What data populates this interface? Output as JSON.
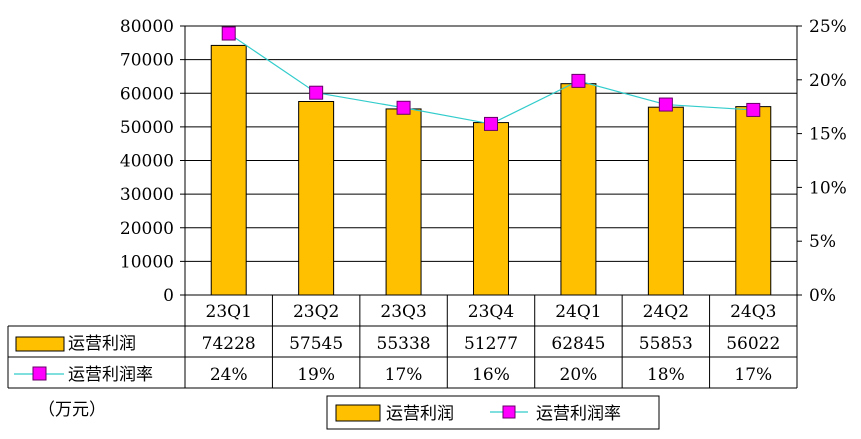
{
  "unit_note": "（万元）",
  "legend": {
    "bar_label": "运营利润",
    "line_label": "运营利润率"
  },
  "colors": {
    "bar_fill": "#FFC000",
    "bar_stroke": "#000000",
    "line": "#33CCCC",
    "marker_fill": "#FF00FF",
    "marker_stroke": "#660066"
  },
  "chart_data": {
    "type": "bar",
    "categories": [
      "23Q1",
      "23Q2",
      "23Q3",
      "23Q4",
      "24Q1",
      "24Q2",
      "24Q3"
    ],
    "series": [
      {
        "name": "运营利润",
        "type": "bar",
        "axis": "left",
        "values": [
          74228,
          57545,
          55338,
          51277,
          62845,
          55853,
          56022
        ]
      },
      {
        "name": "运营利润率",
        "type": "line",
        "axis": "right",
        "values": [
          0.243,
          0.188,
          0.174,
          0.159,
          0.199,
          0.177,
          0.172
        ]
      }
    ],
    "table": {
      "rows": [
        {
          "label": "运营利润",
          "cells": [
            "74228",
            "57545",
            "55338",
            "51277",
            "62845",
            "55853",
            "56022"
          ]
        },
        {
          "label": "运营利润率",
          "cells": [
            "24%",
            "19%",
            "17%",
            "16%",
            "20%",
            "18%",
            "17%"
          ]
        }
      ]
    },
    "y_left": {
      "min": 0,
      "max": 80000,
      "step": 10000,
      "ticks": [
        "0",
        "10000",
        "20000",
        "30000",
        "40000",
        "50000",
        "60000",
        "70000",
        "80000"
      ]
    },
    "y_right": {
      "min": 0,
      "max": 0.25,
      "step": 0.05,
      "ticks": [
        "0%",
        "5%",
        "10%",
        "15%",
        "20%",
        "25%"
      ]
    },
    "grid": true,
    "legend_position": "bottom"
  }
}
